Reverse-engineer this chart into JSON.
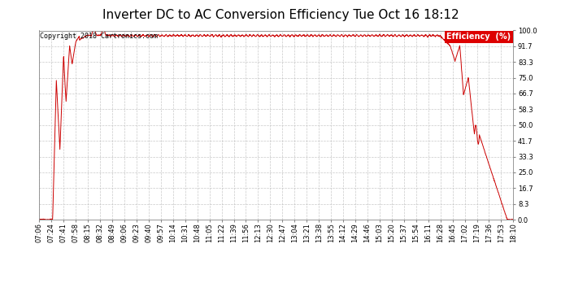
{
  "title": "Inverter DC to AC Conversion Efficiency Tue Oct 16 18:12",
  "copyright": "Copyright 2018 Cartronics.com",
  "legend_label": "Efficiency  (%)",
  "legend_bg": "#dd0000",
  "legend_text_color": "#ffffff",
  "line_color": "#cc0000",
  "bg_color": "#ffffff",
  "plot_bg_color": "#ffffff",
  "grid_color": "#bbbbbb",
  "ylim": [
    0.0,
    100.0
  ],
  "yticks": [
    0.0,
    8.3,
    16.7,
    25.0,
    33.3,
    41.7,
    50.0,
    58.3,
    66.7,
    75.0,
    83.3,
    91.7,
    100.0
  ],
  "xtick_labels": [
    "07:06",
    "07:24",
    "07:41",
    "07:58",
    "08:15",
    "08:32",
    "08:49",
    "09:06",
    "09:23",
    "09:40",
    "09:57",
    "10:14",
    "10:31",
    "10:48",
    "11:05",
    "11:22",
    "11:39",
    "11:56",
    "12:13",
    "12:30",
    "12:47",
    "13:04",
    "13:21",
    "13:38",
    "13:55",
    "14:12",
    "14:29",
    "14:46",
    "15:03",
    "15:20",
    "15:37",
    "15:54",
    "16:11",
    "16:28",
    "16:45",
    "17:02",
    "17:19",
    "17:36",
    "17:53",
    "18:10"
  ],
  "title_fontsize": 11,
  "copyright_fontsize": 6,
  "tick_fontsize": 6,
  "legend_fontsize": 7
}
